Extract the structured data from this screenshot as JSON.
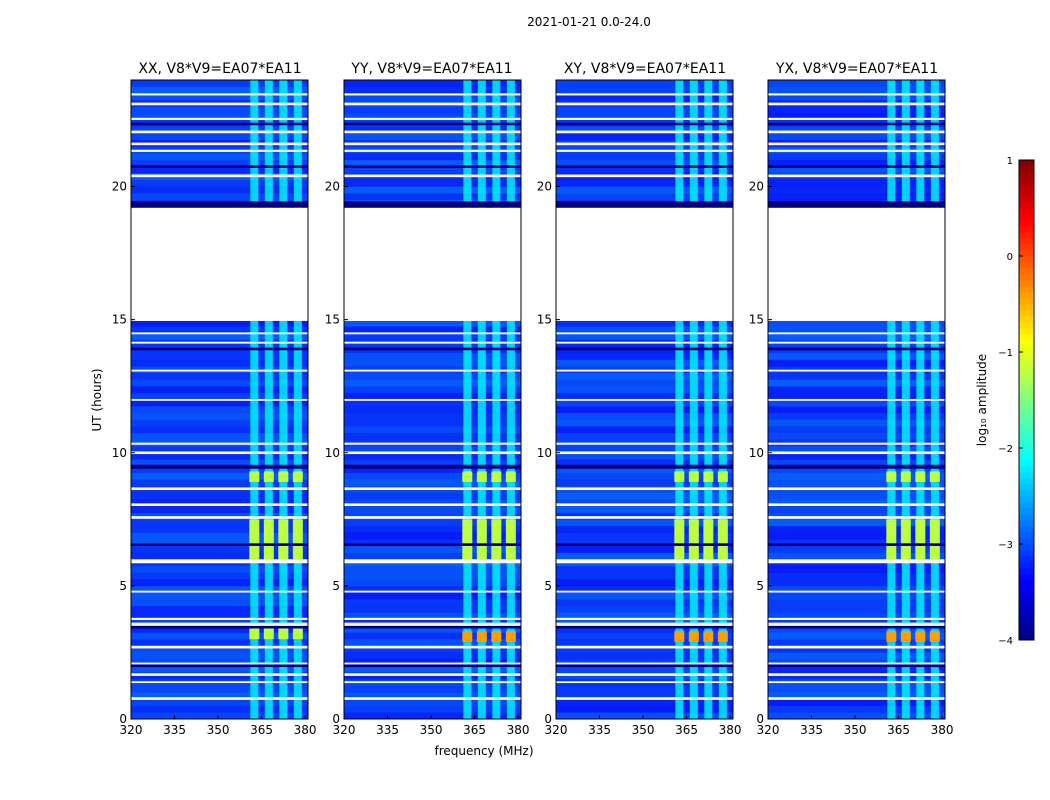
{
  "figure": {
    "suptitle": "2021-01-21 0.0-24.0"
  },
  "chart_data": {
    "type": "heatmap",
    "title": "2021-01-21 0.0-24.0",
    "xlabel": "frequency (MHz)",
    "ylabel": "UT (hours)",
    "xlim": [
      320,
      381
    ],
    "ylim": [
      0,
      24
    ],
    "x_ticks": [
      320,
      335,
      350,
      365,
      380
    ],
    "x_tick_labels": [
      "320",
      "335",
      "350",
      "365",
      "380"
    ],
    "y_ticks": [
      0,
      5,
      10,
      15,
      20
    ],
    "y_tick_labels": [
      "0",
      "5",
      "10",
      "15",
      "20"
    ],
    "rfi_channels_mhz": [
      362.5,
      367.5,
      372.5,
      377.5
    ],
    "gap_hours": [
      [
        14.95,
        19.2
      ]
    ],
    "panels": [
      {
        "title": "XX, V8*V9=EA07*EA11",
        "polarization": "XX",
        "bright_rfi_hours": [
          [
            6.0,
            7.5
          ],
          [
            8.9,
            9.3
          ],
          [
            3.0,
            3.5
          ]
        ]
      },
      {
        "title": "YY, V8*V9=EA07*EA11",
        "polarization": "YY",
        "bright_rfi_hours": [
          [
            6.0,
            7.5
          ],
          [
            8.9,
            9.3
          ],
          [
            2.9,
            3.3
          ]
        ]
      },
      {
        "title": "XY, V8*V9=EA07*EA11",
        "polarization": "XY",
        "bright_rfi_hours": [
          [
            6.0,
            7.5
          ],
          [
            8.9,
            9.3
          ],
          [
            2.9,
            3.3
          ]
        ]
      },
      {
        "title": "YX, V8*V9=EA07*EA11",
        "polarization": "YX",
        "bright_rfi_hours": [
          [
            6.0,
            7.5
          ],
          [
            8.9,
            9.3
          ],
          [
            2.9,
            3.3
          ]
        ]
      }
    ],
    "colorbar": {
      "label": "log₁₀ amplitude",
      "min": -4,
      "max": 1,
      "ticks": [
        1,
        0,
        -1,
        -2,
        -3,
        -4
      ],
      "tick_labels": [
        "1",
        "0",
        "−1",
        "−2",
        "−3",
        "−4"
      ],
      "colormap": "jet",
      "colors": [
        "#00007f",
        "#0000ff",
        "#007fff",
        "#00ffff",
        "#7fff7f",
        "#ffff00",
        "#ff7f00",
        "#ff0000",
        "#7f0000"
      ]
    }
  }
}
